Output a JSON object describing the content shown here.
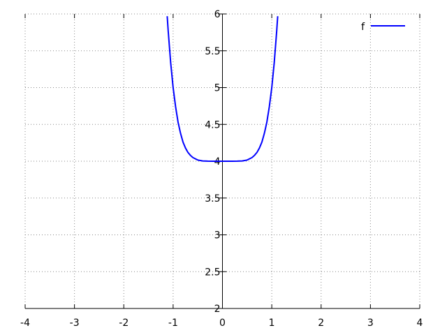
{
  "chart_data": {
    "type": "line",
    "title": "",
    "xlabel": "",
    "ylabel": "",
    "xlim": [
      -4,
      4
    ],
    "ylim": [
      2,
      6
    ],
    "x_ticks": [
      "-4",
      "-3",
      "-2",
      "-1",
      "0",
      "1",
      "2",
      "3",
      "4"
    ],
    "y_ticks": [
      "2",
      "2.5",
      "3",
      "3.5",
      "4",
      "4.5",
      "5",
      "5.5",
      "6"
    ],
    "grid": true,
    "legend_position": "top-right",
    "series": [
      {
        "name": "f",
        "color": "#0000ff",
        "x": [
          -1.12,
          -1.1,
          -1.05,
          -1.0,
          -0.95,
          -0.9,
          -0.85,
          -0.8,
          -0.75,
          -0.7,
          -0.65,
          -0.6,
          -0.5,
          -0.4,
          -0.3,
          -0.2,
          -0.1,
          0,
          0.1,
          0.2,
          0.3,
          0.4,
          0.5,
          0.6,
          0.65,
          0.7,
          0.75,
          0.8,
          0.85,
          0.9,
          0.95,
          1.0,
          1.05,
          1.1,
          1.12
        ],
        "y": [
          5.97,
          5.77,
          5.34,
          5.0,
          4.74,
          4.53,
          4.38,
          4.26,
          4.18,
          4.12,
          4.08,
          4.05,
          4.016,
          4.004,
          4.001,
          4.0,
          4.0,
          4.0,
          4.0,
          4.0,
          4.001,
          4.004,
          4.016,
          4.05,
          4.08,
          4.12,
          4.18,
          4.26,
          4.38,
          4.53,
          4.74,
          5.0,
          5.34,
          5.77,
          5.97
        ]
      }
    ]
  }
}
